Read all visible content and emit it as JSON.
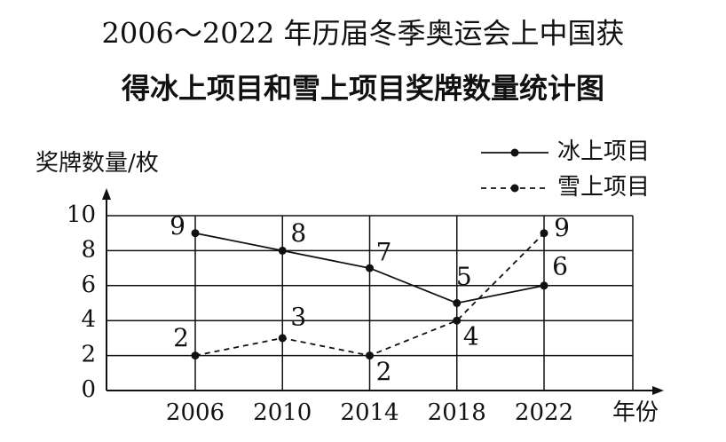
{
  "chart_data": {
    "type": "line",
    "title": [
      "2006～2022 年历届冬季奥运会上中国获",
      "得冰上项目和雪上项目奖牌数量统计图"
    ],
    "y_label": "奖牌数量/枚",
    "x_label": "年份",
    "categories": [
      "2006",
      "2010",
      "2014",
      "2018",
      "2022"
    ],
    "series": [
      {
        "name": "冰上项目",
        "color": "#111111",
        "dash": false,
        "values": [
          9,
          8,
          7,
          5,
          6
        ]
      },
      {
        "name": "雪上项目",
        "color": "#111111",
        "dash": true,
        "values": [
          2,
          3,
          2,
          4,
          9
        ]
      }
    ],
    "ylim": [
      0,
      10
    ],
    "yticks": [
      0,
      2,
      4,
      6,
      8,
      10
    ],
    "grid": true,
    "data_labels": true,
    "legend": "top-right"
  }
}
